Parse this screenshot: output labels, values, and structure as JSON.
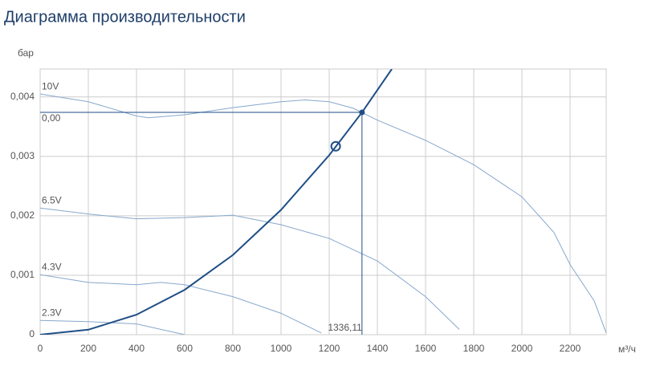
{
  "chart_data": {
    "type": "line",
    "title": "Диаграмма производительности",
    "y_label": "бар",
    "x_label": "м³/ч",
    "xlim": [
      0,
      2350
    ],
    "ylim": [
      0,
      0.00447
    ],
    "xticks": [
      0,
      200,
      400,
      600,
      800,
      1000,
      1200,
      1400,
      1600,
      1800,
      2000,
      2200
    ],
    "yticks": [
      0,
      {
        "value": 0.001,
        "label": "0,001"
      },
      {
        "value": 0.002,
        "label": "0,002"
      },
      {
        "value": 0.003,
        "label": "0,003"
      },
      {
        "value": 0.004,
        "label": "0,004"
      }
    ],
    "grid": true,
    "series": [
      {
        "name": "10V",
        "color": "#87a8cc",
        "x": [
          0,
          200,
          400,
          450,
          600,
          800,
          1000,
          1100,
          1200,
          1300,
          1400,
          1600,
          1800,
          2000,
          2133,
          2200,
          2300,
          2350
        ],
        "values": [
          0.00405,
          0.00392,
          0.00368,
          0.00365,
          0.0037,
          0.00382,
          0.00392,
          0.00395,
          0.00392,
          0.00381,
          0.00361,
          0.00327,
          0.00286,
          0.00232,
          0.00172,
          0.00118,
          0.00057,
          3e-05
        ]
      },
      {
        "name": "6.5V",
        "color": "#87a8cc",
        "x": [
          0,
          200,
          400,
          600,
          800,
          1000,
          1200,
          1400,
          1600,
          1740
        ],
        "values": [
          0.00213,
          0.00203,
          0.00195,
          0.00197,
          0.00201,
          0.00185,
          0.00162,
          0.00124,
          0.00064,
          9e-05
        ]
      },
      {
        "name": "4.3V",
        "color": "#87a8cc",
        "x": [
          0,
          200,
          400,
          500,
          600,
          800,
          1000,
          1167
        ],
        "values": [
          0.00101,
          0.00088,
          0.00084,
          0.00088,
          0.00084,
          0.00064,
          0.00036,
          3e-05
        ]
      },
      {
        "name": "2.3V",
        "color": "#87a8cc",
        "x": [
          0,
          200,
          400,
          600
        ],
        "values": [
          0.00024,
          0.00022,
          0.00018,
          0
        ]
      },
      {
        "color": "#1f4e85",
        "x": [
          0,
          200,
          400,
          600,
          800,
          1000,
          1200,
          1336.11,
          1460
        ],
        "values": [
          0,
          8.39e-05,
          0.000336,
          0.000755,
          0.00134,
          0.0021,
          0.00302,
          0.00374,
          0.00447
        ]
      }
    ],
    "operating_point": {
      "x": 1336.11,
      "y": 0.00374,
      "color": "#1f4e85"
    },
    "design_point": {
      "x": 1227,
      "y": 0.00317
    },
    "annotations": [
      "0,00",
      "1336,11"
    ]
  }
}
